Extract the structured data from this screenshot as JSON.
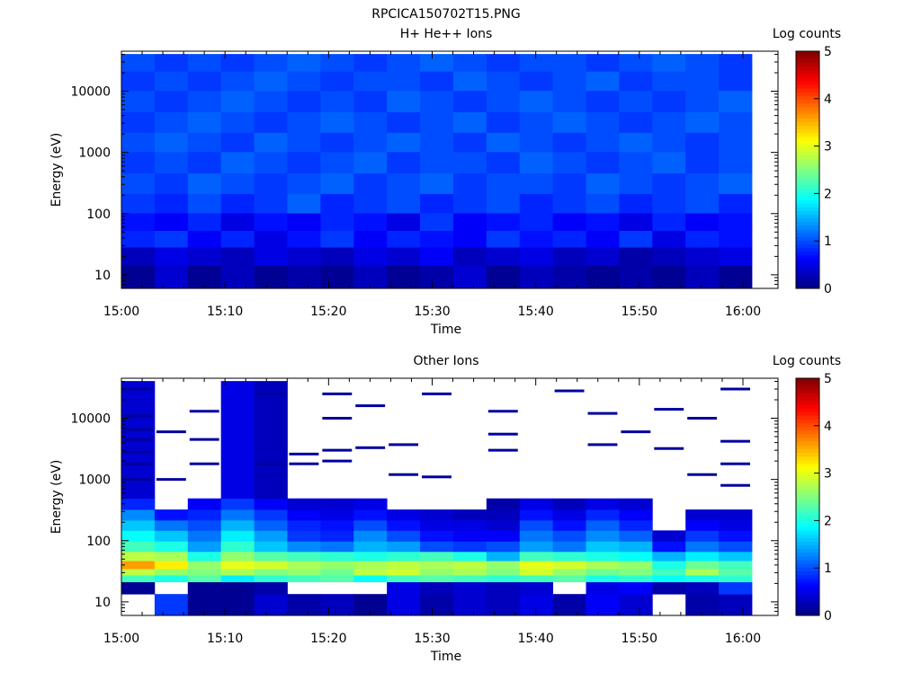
{
  "figure_title": "RPCICA150702T15.PNG",
  "colors": {
    "colormap": [
      "#00007f",
      "#0000ff",
      "#0080ff",
      "#00ffff",
      "#80ff80",
      "#ffff00",
      "#ff8000",
      "#ff0000",
      "#7f0000"
    ],
    "empty": "#ffffff"
  },
  "chart_data": [
    {
      "type": "heatmap",
      "title": "H+ He++ Ions",
      "xlabel": "Time",
      "ylabel": "Energy (eV)",
      "yscale": "log",
      "ylim": [
        6,
        45000
      ],
      "x_tick_labels": [
        "15:00",
        "15:10",
        "15:20",
        "15:30",
        "15:40",
        "15:50",
        "16:00"
      ],
      "y_tick_labels": [
        "10",
        "100",
        "1000",
        "10000"
      ],
      "colorbar": {
        "label": "Log counts",
        "range": [
          0,
          5
        ],
        "tick_labels": [
          "0",
          "1",
          "2",
          "3",
          "4",
          "5"
        ]
      },
      "time_bins": [
        "15:00",
        "15:03",
        "15:06",
        "15:10",
        "15:13",
        "15:16",
        "15:19",
        "15:23",
        "15:26",
        "15:29",
        "15:32",
        "15:36",
        "15:39",
        "15:42",
        "15:45",
        "15:49",
        "15:52",
        "15:55",
        "15:58"
      ],
      "energy_bands": [
        {
          "energy": 10,
          "log_counts": [
            0.1,
            0.4,
            0.1,
            0.3,
            0.1,
            0.2,
            0.1,
            0.3,
            0.1,
            0.2,
            0.4,
            0.1,
            0.3,
            0.2,
            0.1,
            0.2,
            0.1,
            0.3,
            0.1
          ]
        },
        {
          "energy": 20,
          "log_counts": [
            0.3,
            0.5,
            0.4,
            0.3,
            0.5,
            0.4,
            0.3,
            0.5,
            0.4,
            0.6,
            0.3,
            0.4,
            0.5,
            0.3,
            0.4,
            0.2,
            0.3,
            0.4,
            0.5
          ]
        },
        {
          "energy": 40,
          "log_counts": [
            0.8,
            0.9,
            0.6,
            0.8,
            0.5,
            0.7,
            0.9,
            0.6,
            0.8,
            0.7,
            0.6,
            0.9,
            0.7,
            0.8,
            0.6,
            0.9,
            0.5,
            0.8,
            0.7
          ]
        },
        {
          "energy": 70,
          "log_counts": [
            0.7,
            0.6,
            0.8,
            0.5,
            0.7,
            0.6,
            0.8,
            0.7,
            0.5,
            0.9,
            0.6,
            0.7,
            0.8,
            0.6,
            0.7,
            0.5,
            0.8,
            0.6,
            0.7
          ]
        },
        {
          "energy": 150,
          "log_counts": [
            0.9,
            0.8,
            1.0,
            0.8,
            0.9,
            1.1,
            0.8,
            0.9,
            1.0,
            0.8,
            0.9,
            1.0,
            0.8,
            0.9,
            1.0,
            0.8,
            0.9,
            1.0,
            0.8
          ]
        },
        {
          "energy": 300,
          "log_counts": [
            1.0,
            0.9,
            1.1,
            1.0,
            0.9,
            1.0,
            1.1,
            0.9,
            1.0,
            1.1,
            0.9,
            1.0,
            1.0,
            0.9,
            1.1,
            1.0,
            0.9,
            1.0,
            1.1
          ]
        },
        {
          "energy": 700,
          "log_counts": [
            0.9,
            1.0,
            0.9,
            1.1,
            1.0,
            0.9,
            1.0,
            1.1,
            0.9,
            1.0,
            1.0,
            0.9,
            1.1,
            1.0,
            0.9,
            1.0,
            1.1,
            0.9,
            1.0
          ]
        },
        {
          "energy": 1500,
          "log_counts": [
            1.0,
            1.1,
            1.0,
            0.9,
            1.1,
            1.0,
            0.9,
            1.0,
            1.1,
            1.0,
            0.9,
            1.1,
            1.0,
            0.9,
            1.0,
            1.1,
            1.0,
            0.9,
            1.0
          ]
        },
        {
          "energy": 3000,
          "log_counts": [
            0.9,
            1.0,
            1.1,
            1.0,
            0.9,
            1.0,
            1.1,
            1.0,
            0.9,
            1.0,
            1.1,
            0.9,
            1.0,
            1.1,
            1.0,
            0.9,
            1.0,
            1.1,
            1.0
          ]
        },
        {
          "energy": 7000,
          "log_counts": [
            1.0,
            0.9,
            1.0,
            1.1,
            1.0,
            0.9,
            1.0,
            0.9,
            1.1,
            1.0,
            0.9,
            1.0,
            1.1,
            1.0,
            0.9,
            1.0,
            0.9,
            1.0,
            1.1
          ]
        },
        {
          "energy": 15000,
          "log_counts": [
            0.9,
            1.0,
            0.9,
            1.0,
            1.1,
            1.0,
            0.9,
            1.0,
            1.0,
            0.9,
            1.1,
            1.0,
            0.9,
            1.0,
            1.1,
            0.9,
            1.0,
            1.0,
            0.9
          ]
        },
        {
          "energy": 30000,
          "log_counts": [
            1.0,
            0.9,
            1.0,
            0.9,
            1.0,
            1.1,
            1.0,
            0.9,
            1.0,
            1.1,
            1.0,
            0.9,
            1.0,
            1.0,
            0.9,
            1.0,
            1.1,
            1.0,
            0.9
          ]
        }
      ]
    },
    {
      "type": "heatmap",
      "title": "Other Ions",
      "xlabel": "Time",
      "ylabel": "Energy (eV)",
      "yscale": "log",
      "ylim": [
        6,
        45000
      ],
      "x_tick_labels": [
        "15:00",
        "15:10",
        "15:20",
        "15:30",
        "15:40",
        "15:50",
        "16:00"
      ],
      "y_tick_labels": [
        "10",
        "100",
        "1000",
        "10000"
      ],
      "colorbar": {
        "label": "Log counts",
        "range": [
          0,
          5
        ],
        "tick_labels": [
          "0",
          "1",
          "2",
          "3",
          "4",
          "5"
        ]
      },
      "time_bins": [
        "15:00",
        "15:03",
        "15:06",
        "15:10",
        "15:13",
        "15:16",
        "15:19",
        "15:23",
        "15:26",
        "15:29",
        "15:32",
        "15:36",
        "15:39",
        "15:42",
        "15:45",
        "15:49",
        "15:52",
        "15:55",
        "15:58"
      ],
      "energy_bands": [
        {
          "energy": 10,
          "log_counts": [
            null,
            0.9,
            0.1,
            0.1,
            0.4,
            0.2,
            0.3,
            0.1,
            0.5,
            0.2,
            0.4,
            0.3,
            0.5,
            0.2,
            0.6,
            0.4,
            null,
            0.2,
            0.3
          ]
        },
        {
          "energy": 18,
          "log_counts": [
            0.1,
            null,
            0.1,
            0.1,
            0.2,
            null,
            null,
            null,
            0.5,
            0.3,
            0.4,
            0.3,
            0.4,
            null,
            0.5,
            0.6,
            0.2,
            0.3,
            0.9
          ]
        },
        {
          "energy": 25,
          "log_counts": [
            2.2,
            2.0,
            2.3,
            1.8,
            2.1,
            2.2,
            2.3,
            1.9,
            2.2,
            2.3,
            2.2,
            2.1,
            2.2,
            2.3,
            2.0,
            2.1,
            1.9,
            2.0,
            2.1
          ]
        },
        {
          "energy": 30,
          "log_counts": [
            2.8,
            2.6,
            2.5,
            2.7,
            2.5,
            2.6,
            2.4,
            2.8,
            2.9,
            2.6,
            2.7,
            2.5,
            2.9,
            2.6,
            2.4,
            2.5,
            2.2,
            2.7,
            2.3
          ]
        },
        {
          "energy": 40,
          "log_counts": [
            3.6,
            3.2,
            2.6,
            3.0,
            2.9,
            2.7,
            2.6,
            2.7,
            2.8,
            2.7,
            2.8,
            2.6,
            3.0,
            2.9,
            2.7,
            2.6,
            2.0,
            2.4,
            2.2
          ]
        },
        {
          "energy": 55,
          "log_counts": [
            2.8,
            2.7,
            2.0,
            2.6,
            2.3,
            2.2,
            2.1,
            2.0,
            2.1,
            2.2,
            2.0,
            1.5,
            2.2,
            2.1,
            2.0,
            1.9,
            1.5,
            1.8,
            1.6
          ]
        },
        {
          "energy": 80,
          "log_counts": [
            2.2,
            2.0,
            1.4,
            2.1,
            1.6,
            1.3,
            1.2,
            1.5,
            1.4,
            1.0,
            0.9,
            1.0,
            1.4,
            1.2,
            1.6,
            1.5,
            0.7,
            1.2,
            1.0
          ]
        },
        {
          "energy": 120,
          "log_counts": [
            1.9,
            1.6,
            1.2,
            1.8,
            1.4,
            0.9,
            0.8,
            1.3,
            1.0,
            0.7,
            0.6,
            0.6,
            1.2,
            1.0,
            1.3,
            1.1,
            0.4,
            0.9,
            0.7
          ]
        },
        {
          "energy": 180,
          "log_counts": [
            1.6,
            1.2,
            1.0,
            1.5,
            1.1,
            0.8,
            0.7,
            1.0,
            0.7,
            0.5,
            0.5,
            0.4,
            1.0,
            0.7,
            1.1,
            0.8,
            null,
            0.6,
            0.5
          ]
        },
        {
          "energy": 260,
          "log_counts": [
            1.3,
            0.7,
            0.8,
            1.2,
            0.9,
            0.6,
            0.5,
            0.7,
            0.5,
            0.4,
            0.3,
            0.3,
            0.7,
            0.5,
            0.8,
            0.6,
            null,
            0.4,
            0.4
          ]
        },
        {
          "energy": 400,
          "log_counts": [
            0.8,
            null,
            0.6,
            0.9,
            0.6,
            0.4,
            0.4,
            0.5,
            null,
            null,
            null,
            0.2,
            0.5,
            0.3,
            0.5,
            0.4,
            null,
            null,
            null
          ]
        },
        {
          "energy": 600,
          "log_counts": [
            0.4,
            null,
            null,
            0.5,
            0.3,
            null,
            null,
            null,
            null,
            null,
            null,
            null,
            null,
            null,
            null,
            null,
            null,
            null,
            null
          ]
        }
      ],
      "sparse_high_energy_ticks": [
        {
          "time_bin": 0,
          "energies": [
            1000,
            1800,
            2800,
            4500,
            6500,
            11000,
            30000
          ]
        },
        {
          "time_bin": 1,
          "energies": [
            1000,
            6000
          ]
        },
        {
          "time_bin": 2,
          "energies": [
            1800,
            4500,
            13000
          ]
        },
        {
          "time_bin": 4,
          "energies": [
            1800,
            25000
          ]
        },
        {
          "time_bin": 5,
          "energies": [
            1800,
            2600
          ]
        },
        {
          "time_bin": 6,
          "energies": [
            2000,
            3000,
            10000,
            25000
          ]
        },
        {
          "time_bin": 7,
          "energies": [
            3300,
            16000
          ]
        },
        {
          "time_bin": 8,
          "energies": [
            1200,
            3700
          ]
        },
        {
          "time_bin": 9,
          "energies": [
            1100,
            25000
          ]
        },
        {
          "time_bin": 11,
          "energies": [
            3000,
            5500,
            13000
          ]
        },
        {
          "time_bin": 13,
          "energies": [
            28000
          ]
        },
        {
          "time_bin": 14,
          "energies": [
            3700,
            12000
          ]
        },
        {
          "time_bin": 15,
          "energies": [
            6000
          ]
        },
        {
          "time_bin": 16,
          "energies": [
            3200,
            14000
          ]
        },
        {
          "time_bin": 17,
          "energies": [
            1200,
            10000
          ]
        },
        {
          "time_bin": 18,
          "energies": [
            800,
            1800,
            4200,
            30000
          ]
        }
      ]
    }
  ]
}
